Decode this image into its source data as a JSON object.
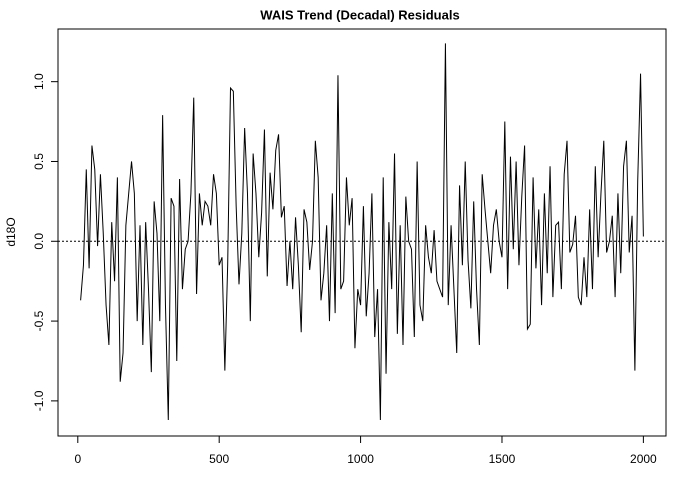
{
  "chart_data": {
    "type": "line",
    "title": "WAIS Trend (Decadal) Residuals",
    "y_label": "d18O",
    "color": "#000000",
    "x": [
      10,
      20,
      30,
      40,
      50,
      60,
      70,
      80,
      90,
      100,
      110,
      120,
      130,
      140,
      150,
      160,
      170,
      180,
      190,
      200,
      210,
      220,
      230,
      240,
      250,
      260,
      270,
      280,
      290,
      300,
      310,
      320,
      330,
      340,
      350,
      360,
      370,
      380,
      390,
      400,
      410,
      420,
      430,
      440,
      450,
      460,
      470,
      480,
      490,
      500,
      510,
      520,
      530,
      540,
      550,
      560,
      570,
      580,
      590,
      600,
      610,
      620,
      630,
      640,
      650,
      660,
      670,
      680,
      690,
      700,
      710,
      720,
      730,
      740,
      750,
      760,
      770,
      780,
      790,
      800,
      810,
      820,
      830,
      840,
      850,
      860,
      870,
      880,
      890,
      900,
      910,
      920,
      930,
      940,
      950,
      960,
      970,
      980,
      990,
      1000,
      1010,
      1020,
      1030,
      1040,
      1050,
      1060,
      1070,
      1080,
      1090,
      1100,
      1110,
      1120,
      1130,
      1140,
      1150,
      1160,
      1170,
      1180,
      1190,
      1200,
      1210,
      1220,
      1230,
      1240,
      1250,
      1260,
      1270,
      1280,
      1290,
      1300,
      1310,
      1320,
      1330,
      1340,
      1350,
      1360,
      1370,
      1380,
      1390,
      1400,
      1410,
      1420,
      1430,
      1440,
      1450,
      1460,
      1470,
      1480,
      1490,
      1500,
      1510,
      1520,
      1530,
      1540,
      1550,
      1560,
      1570,
      1580,
      1590,
      1600,
      1610,
      1620,
      1630,
      1640,
      1650,
      1660,
      1670,
      1680,
      1690,
      1700,
      1710,
      1720,
      1730,
      1740,
      1750,
      1760,
      1770,
      1780,
      1790,
      1800,
      1810,
      1820,
      1830,
      1840,
      1850,
      1860,
      1870,
      1880,
      1890,
      1900,
      1910,
      1920,
      1930,
      1940,
      1950,
      1960,
      1970,
      1980,
      1990,
      2000
    ],
    "values": [
      -0.37,
      -0.15,
      0.45,
      -0.17,
      0.6,
      0.45,
      -0.03,
      0.42,
      0.05,
      -0.4,
      -0.65,
      0.12,
      -0.25,
      0.4,
      -0.88,
      -0.7,
      0.1,
      0.3,
      0.5,
      0.3,
      -0.5,
      0.1,
      -0.65,
      0.12,
      -0.3,
      -0.82,
      0.25,
      0.05,
      -0.5,
      0.79,
      -0.4,
      -1.12,
      0.27,
      0.22,
      -0.75,
      0.39,
      -0.3,
      -0.05,
      0.0,
      0.3,
      0.9,
      -0.33,
      0.3,
      0.1,
      0.25,
      0.22,
      0.1,
      0.42,
      0.3,
      -0.15,
      -0.1,
      -0.81,
      -0.15,
      0.96,
      0.94,
      0.22,
      -0.27,
      0.05,
      0.71,
      0.3,
      -0.5,
      0.55,
      0.3,
      -0.1,
      0.18,
      0.7,
      -0.22,
      0.43,
      0.2,
      0.57,
      0.67,
      0.15,
      0.22,
      -0.28,
      0.0,
      -0.3,
      0.15,
      -0.15,
      -0.57,
      0.2,
      0.12,
      -0.18,
      0.0,
      0.63,
      0.4,
      -0.37,
      -0.2,
      0.1,
      -0.5,
      0.3,
      -0.45,
      1.04,
      -0.3,
      -0.25,
      0.4,
      0.1,
      0.27,
      -0.67,
      -0.3,
      -0.4,
      0.22,
      -0.47,
      -0.2,
      0.3,
      -0.6,
      -0.3,
      -1.12,
      0.4,
      -0.83,
      0.12,
      -0.3,
      0.55,
      -0.58,
      0.1,
      -0.65,
      0.28,
      0.0,
      -0.05,
      -0.6,
      0.5,
      -0.4,
      -0.5,
      0.1,
      -0.1,
      -0.2,
      0.07,
      -0.25,
      -0.3,
      -0.35,
      1.24,
      -0.4,
      0.1,
      -0.3,
      -0.7,
      0.35,
      -0.15,
      0.5,
      -0.12,
      -0.42,
      0.25,
      -0.3,
      -0.65,
      0.42,
      0.2,
      0.0,
      -0.2,
      0.1,
      0.2,
      0.0,
      -0.1,
      0.75,
      -0.3,
      0.53,
      -0.05,
      0.5,
      -0.15,
      0.28,
      0.6,
      -0.55,
      -0.52,
      0.4,
      -0.17,
      0.2,
      -0.4,
      0.3,
      -0.2,
      0.47,
      -0.35,
      0.1,
      0.12,
      -0.3,
      0.42,
      0.63,
      -0.07,
      -0.02,
      0.16,
      -0.35,
      -0.4,
      -0.1,
      -0.35,
      0.2,
      -0.3,
      0.47,
      -0.1,
      0.3,
      0.63,
      -0.07,
      0.0,
      0.16,
      -0.35,
      0.3,
      -0.2,
      0.47,
      0.63,
      -0.07,
      0.16,
      -0.81,
      0.38,
      1.05,
      0.03
    ],
    "xlim": [
      -70,
      2080
    ],
    "ylim": [
      -1.22,
      1.33
    ],
    "xticks": [
      0,
      500,
      1000,
      1500,
      2000
    ],
    "yticks": [
      {
        "value": -1,
        "label": "-1.0"
      },
      -0.5,
      {
        "value": 0,
        "label": "0.0"
      },
      0.5,
      {
        "value": 1,
        "label": "1.0"
      }
    ],
    "reference_line": 0
  }
}
